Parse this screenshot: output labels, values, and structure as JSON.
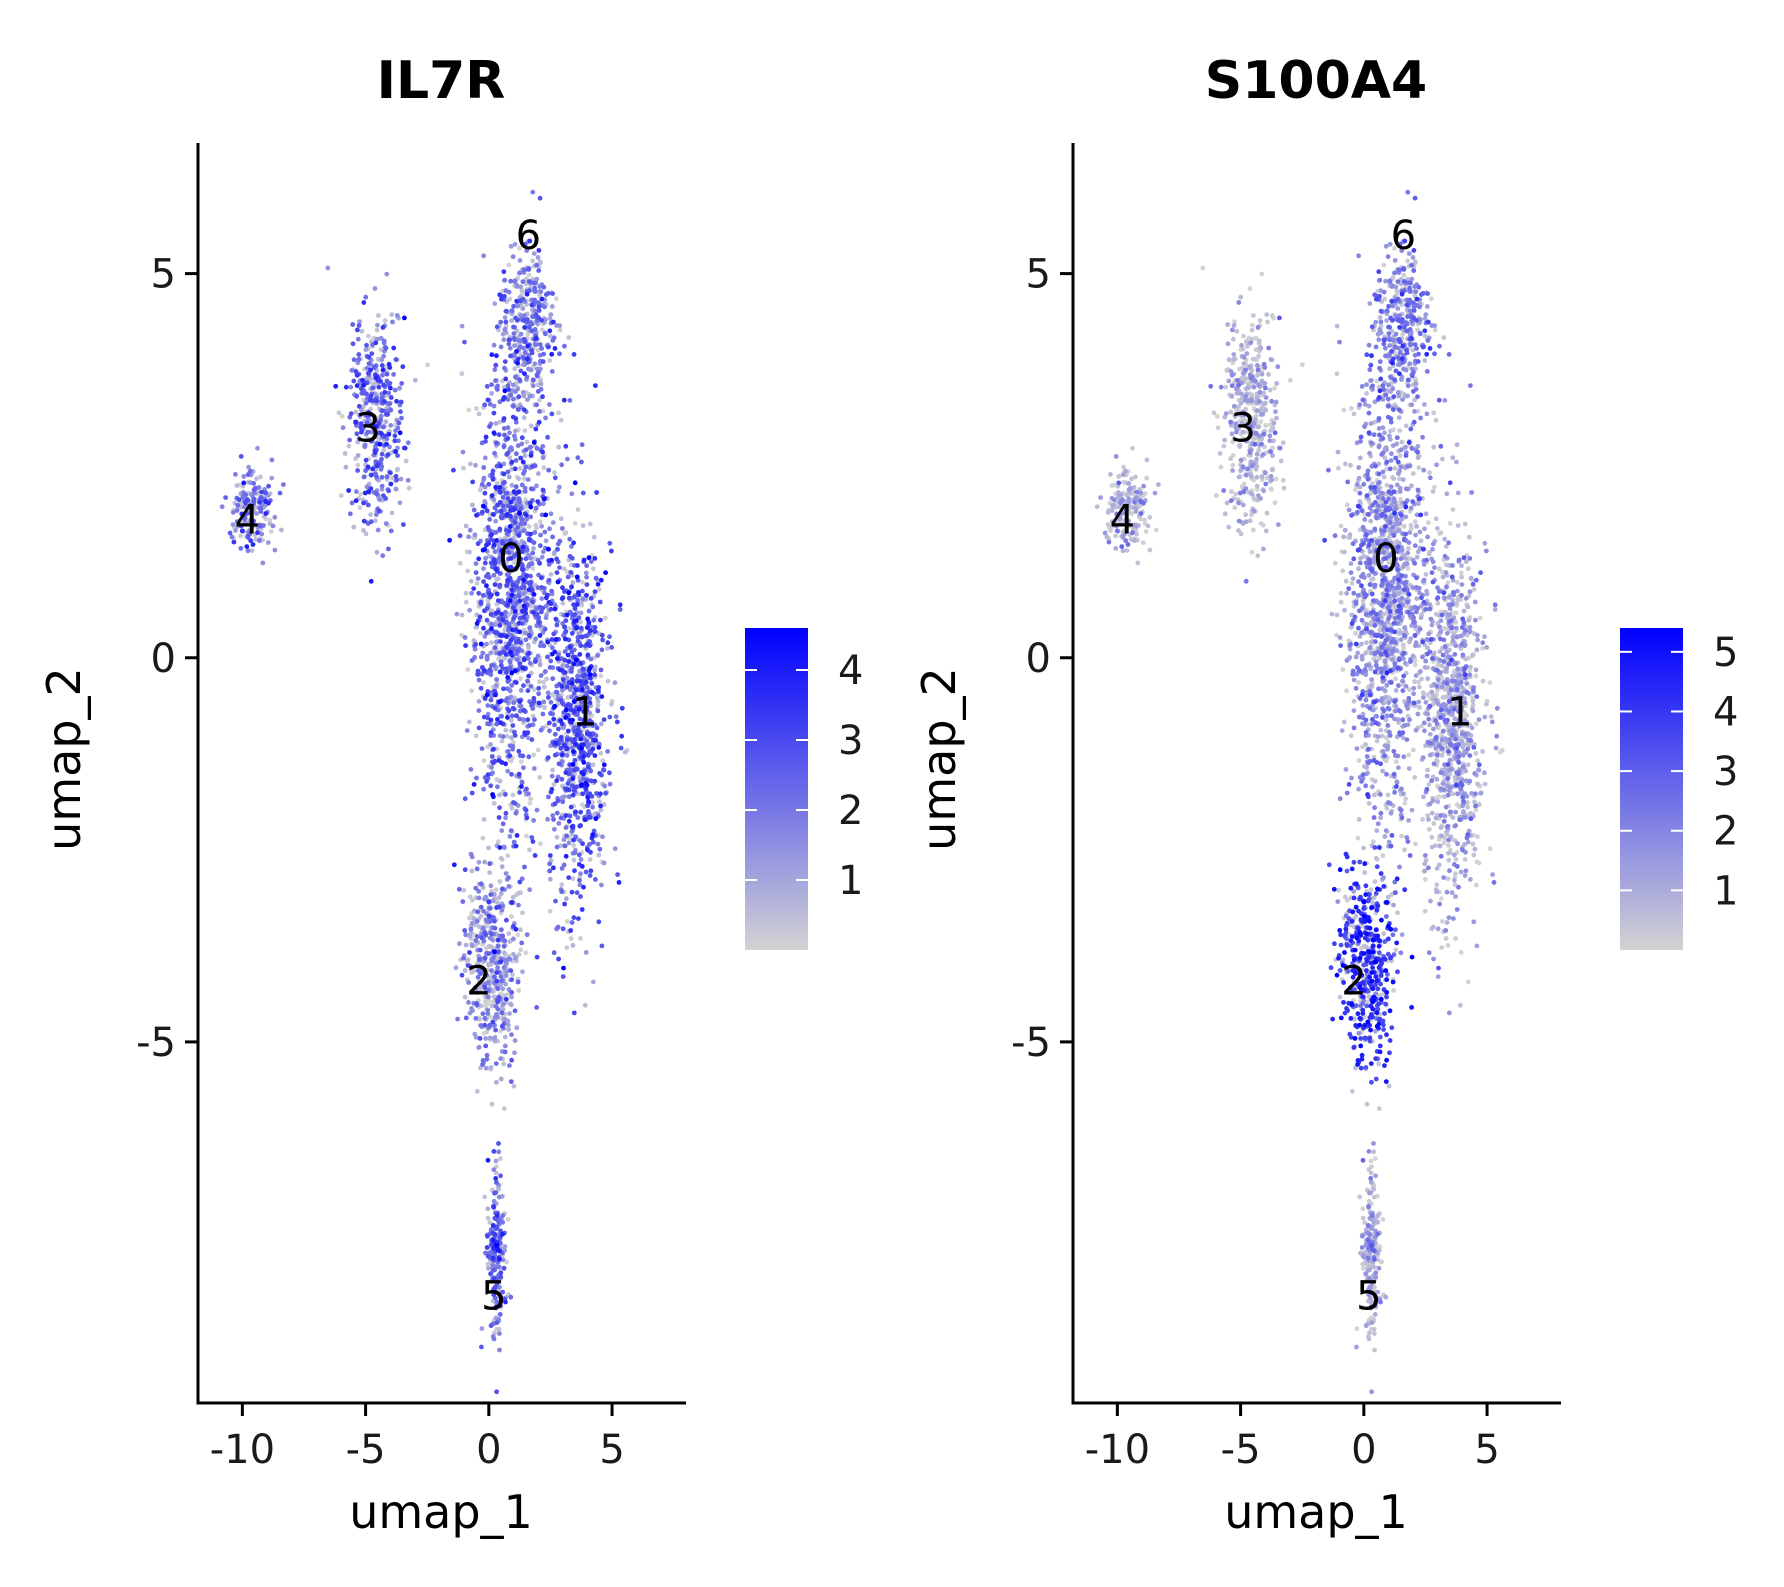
{
  "chart_data": [
    {
      "type": "scatter",
      "title": "IL7R",
      "xlabel": "umap_1",
      "ylabel": "umap_2",
      "xlim": [
        -11.8,
        8
      ],
      "ylim": [
        -9.7,
        6.7
      ],
      "x_ticks": [
        -10,
        -5,
        0,
        5
      ],
      "x_tick_labels": [
        "-10",
        "-5",
        "0",
        "5"
      ],
      "y_ticks": [
        -5,
        0,
        5
      ],
      "y_tick_labels": [
        "-5",
        "0",
        "5"
      ],
      "color_scale": {
        "low": "#d3d3d3",
        "high": "#0000ff",
        "min": 0,
        "max": 4.6,
        "ticks": [
          1,
          2,
          3,
          4
        ],
        "tick_labels": [
          "1",
          "2",
          "3",
          "4"
        ]
      },
      "legend_position": "right",
      "cluster_labels": [
        {
          "label": "0",
          "x": 0.9,
          "y": 1.3
        },
        {
          "label": "1",
          "x": 3.9,
          "y": -0.7
        },
        {
          "label": "2",
          "x": -0.4,
          "y": -4.2
        },
        {
          "label": "3",
          "x": -4.9,
          "y": 3.0
        },
        {
          "label": "4",
          "x": -9.8,
          "y": 1.8
        },
        {
          "label": "5",
          "x": 0.2,
          "y": -8.3
        },
        {
          "label": "6",
          "x": 1.6,
          "y": 5.5
        }
      ],
      "clusters": [
        {
          "id": "0",
          "cx": 1.0,
          "cy": 0.8,
          "sx": 1.6,
          "sy": 2.6,
          "n": 1400,
          "mean_expr": 2.4
        },
        {
          "id": "1",
          "cx": 3.6,
          "cy": -0.8,
          "sx": 1.2,
          "sy": 2.2,
          "n": 900,
          "mean_expr": 2.6
        },
        {
          "id": "2",
          "cx": 0.1,
          "cy": -4.0,
          "sx": 1.0,
          "sy": 1.2,
          "n": 500,
          "mean_expr": 1.5
        },
        {
          "id": "3",
          "cx": -4.6,
          "cy": 3.1,
          "sx": 1.0,
          "sy": 1.2,
          "n": 450,
          "mean_expr": 2.3
        },
        {
          "id": "4",
          "cx": -9.5,
          "cy": 1.9,
          "sx": 0.8,
          "sy": 0.5,
          "n": 180,
          "mean_expr": 2.0
        },
        {
          "id": "5",
          "cx": 0.3,
          "cy": -7.8,
          "sx": 0.35,
          "sy": 1.0,
          "n": 220,
          "mean_expr": 2.2
        },
        {
          "id": "6",
          "cx": 1.5,
          "cy": 4.3,
          "sx": 1.1,
          "sy": 0.9,
          "n": 350,
          "mean_expr": 1.9
        }
      ]
    },
    {
      "type": "scatter",
      "title": "S100A4",
      "xlabel": "umap_1",
      "ylabel": "umap_2",
      "xlim": [
        -11.8,
        8
      ],
      "ylim": [
        -9.7,
        6.7
      ],
      "x_ticks": [
        -10,
        -5,
        0,
        5
      ],
      "x_tick_labels": [
        "-10",
        "-5",
        "0",
        "5"
      ],
      "y_ticks": [
        -5,
        0,
        5
      ],
      "y_tick_labels": [
        "-5",
        "0",
        "5"
      ],
      "color_scale": {
        "low": "#d3d3d3",
        "high": "#0000ff",
        "min": 0,
        "max": 5.4,
        "ticks": [
          1,
          2,
          3,
          4,
          5
        ],
        "tick_labels": [
          "1",
          "2",
          "3",
          "4",
          "5"
        ]
      },
      "legend_position": "right",
      "cluster_labels": [
        {
          "label": "0",
          "x": 0.9,
          "y": 1.3
        },
        {
          "label": "1",
          "x": 3.9,
          "y": -0.7
        },
        {
          "label": "2",
          "x": -0.4,
          "y": -4.2
        },
        {
          "label": "3",
          "x": -4.9,
          "y": 3.0
        },
        {
          "label": "4",
          "x": -9.8,
          "y": 1.8
        },
        {
          "label": "5",
          "x": 0.2,
          "y": -8.3
        },
        {
          "label": "6",
          "x": 1.6,
          "y": 5.5
        }
      ],
      "clusters": [
        {
          "id": "0",
          "cx": 1.0,
          "cy": 0.8,
          "sx": 1.6,
          "sy": 2.6,
          "n": 1400,
          "mean_expr": 1.8
        },
        {
          "id": "1",
          "cx": 3.6,
          "cy": -0.8,
          "sx": 1.2,
          "sy": 2.2,
          "n": 900,
          "mean_expr": 1.2
        },
        {
          "id": "2",
          "cx": 0.1,
          "cy": -4.0,
          "sx": 1.0,
          "sy": 1.2,
          "n": 500,
          "mean_expr": 4.0
        },
        {
          "id": "3",
          "cx": -4.6,
          "cy": 3.1,
          "sx": 1.0,
          "sy": 1.2,
          "n": 450,
          "mean_expr": 0.8
        },
        {
          "id": "4",
          "cx": -9.5,
          "cy": 1.9,
          "sx": 0.8,
          "sy": 0.5,
          "n": 180,
          "mean_expr": 0.9
        },
        {
          "id": "5",
          "cx": 0.3,
          "cy": -7.8,
          "sx": 0.35,
          "sy": 1.0,
          "n": 220,
          "mean_expr": 0.9
        },
        {
          "id": "6",
          "cx": 1.5,
          "cy": 4.3,
          "sx": 1.1,
          "sy": 0.9,
          "n": 350,
          "mean_expr": 2.2
        }
      ]
    }
  ]
}
